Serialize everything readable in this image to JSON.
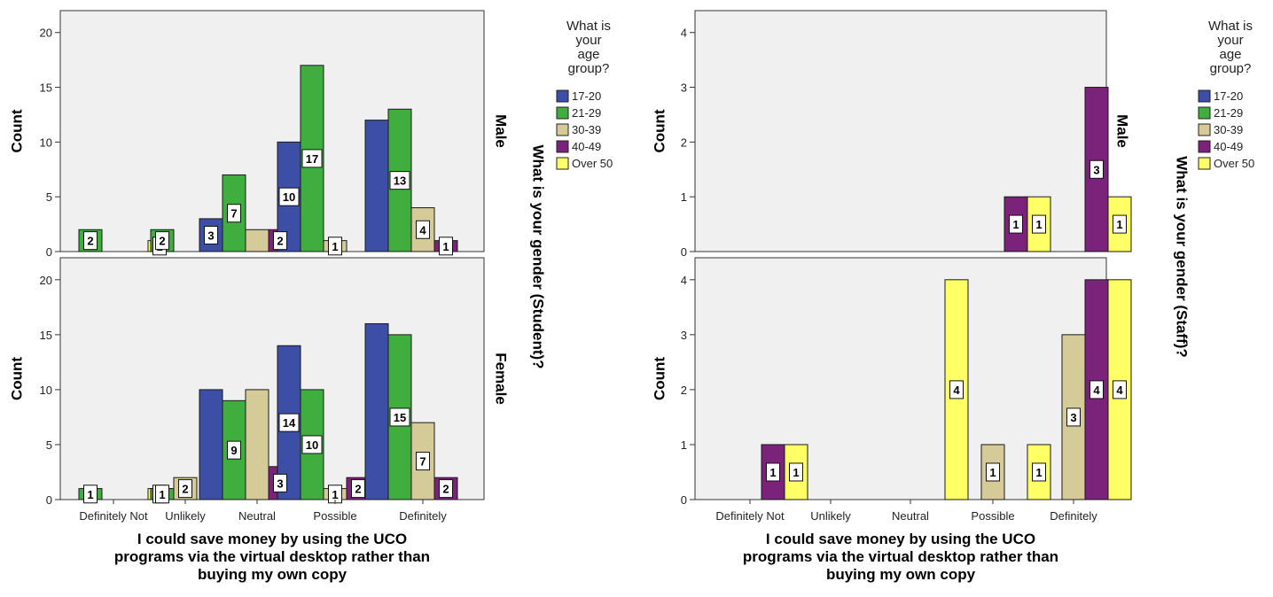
{
  "legend": {
    "title_lines": [
      "What is",
      "your",
      "age",
      "group?"
    ],
    "items": [
      {
        "label": "17-20",
        "color": "#3c4ea6"
      },
      {
        "label": "21-29",
        "color": "#3fae3f"
      },
      {
        "label": "30-39",
        "color": "#d4cb98"
      },
      {
        "label": "40-49",
        "color": "#7b237b"
      },
      {
        "label": "Over 50",
        "color": "#ffff66"
      }
    ]
  },
  "colors": {
    "plot_bg": "#f0f0f0",
    "axis": "#333333"
  },
  "chart_data": [
    {
      "type": "bar",
      "facet_label": "What is your gender (Student)?",
      "xlabel_lines": [
        "I could save money by using the UCO",
        "programs via the virtual desktop rather than",
        "buying my own copy"
      ],
      "ylabel": "Count",
      "categories": [
        "Definitely Not",
        "Unlikely",
        "Neutral",
        "Possible",
        "Definitely"
      ],
      "ylim": [
        0,
        22
      ],
      "yticks": [
        0,
        5,
        10,
        15,
        20
      ],
      "panels": [
        {
          "label": "Male",
          "series": [
            {
              "name": "17-20",
              "values": [
                0,
                0,
                3,
                10,
                12
              ]
            },
            {
              "name": "21-29",
              "values": [
                2,
                2,
                7,
                17,
                13
              ]
            },
            {
              "name": "30-39",
              "values": [
                0,
                0,
                2,
                1,
                4
              ]
            },
            {
              "name": "40-49",
              "values": [
                0,
                0,
                2,
                0,
                1
              ]
            },
            {
              "name": "Over 50",
              "values": [
                1,
                0,
                0,
                0,
                0
              ]
            }
          ],
          "data_labels": [
            {
              "cat": 0,
              "series": 1,
              "text": "2"
            },
            {
              "cat": 0,
              "series": 4,
              "text": "1"
            },
            {
              "cat": 1,
              "series": 1,
              "text": "2"
            },
            {
              "cat": 2,
              "series": 0,
              "text": "3"
            },
            {
              "cat": 2,
              "series": 1,
              "text": "7"
            },
            {
              "cat": 2,
              "series": 3,
              "text": "2"
            },
            {
              "cat": 3,
              "series": 0,
              "text": "10"
            },
            {
              "cat": 3,
              "series": 1,
              "text": "17"
            },
            {
              "cat": 3,
              "series": 2,
              "text": "1"
            },
            {
              "cat": 4,
              "series": 1,
              "text": "13"
            },
            {
              "cat": 4,
              "series": 2,
              "text": "4"
            },
            {
              "cat": 4,
              "series": 3,
              "text": "1"
            }
          ]
        },
        {
          "label": "Female",
          "series": [
            {
              "name": "17-20",
              "values": [
                0,
                0,
                10,
                14,
                16
              ]
            },
            {
              "name": "21-29",
              "values": [
                1,
                1,
                9,
                10,
                15
              ]
            },
            {
              "name": "30-39",
              "values": [
                0,
                2,
                10,
                1,
                7
              ]
            },
            {
              "name": "40-49",
              "values": [
                0,
                0,
                3,
                2,
                2
              ]
            },
            {
              "name": "Over 50",
              "values": [
                1,
                0,
                0,
                0,
                0
              ]
            }
          ],
          "data_labels": [
            {
              "cat": 0,
              "series": 1,
              "text": "1"
            },
            {
              "cat": 0,
              "series": 4,
              "text": "1"
            },
            {
              "cat": 1,
              "series": 1,
              "text": "1"
            },
            {
              "cat": 1,
              "series": 2,
              "text": "2"
            },
            {
              "cat": 2,
              "series": 1,
              "text": "9"
            },
            {
              "cat": 2,
              "series": 3,
              "text": "3"
            },
            {
              "cat": 3,
              "series": 0,
              "text": "14"
            },
            {
              "cat": 3,
              "series": 1,
              "text": "10"
            },
            {
              "cat": 3,
              "series": 2,
              "text": "1"
            },
            {
              "cat": 3,
              "series": 3,
              "text": "2"
            },
            {
              "cat": 4,
              "series": 1,
              "text": "15"
            },
            {
              "cat": 4,
              "series": 2,
              "text": "7"
            },
            {
              "cat": 4,
              "series": 3,
              "text": "2"
            }
          ]
        }
      ]
    },
    {
      "type": "bar",
      "facet_label": "What is your gender (Staff)?",
      "xlabel_lines": [
        "I could save money by using the UCO",
        "programs via the virtual desktop rather than",
        "buying my own copy"
      ],
      "ylabel": "Count",
      "categories": [
        "Definitely Not",
        "Unlikely",
        "Neutral",
        "Possible",
        "Definitely"
      ],
      "ylim": [
        0,
        4.4
      ],
      "yticks": [
        0,
        1,
        2,
        3,
        4
      ],
      "panels": [
        {
          "label": "Male",
          "series": [
            {
              "name": "17-20",
              "values": [
                0,
                0,
                0,
                0,
                0
              ]
            },
            {
              "name": "21-29",
              "values": [
                0,
                0,
                0,
                0,
                0
              ]
            },
            {
              "name": "30-39",
              "values": [
                0,
                0,
                0,
                0,
                0
              ]
            },
            {
              "name": "40-49",
              "values": [
                0,
                0,
                0,
                1,
                3
              ]
            },
            {
              "name": "Over 50",
              "values": [
                0,
                0,
                0,
                1,
                1
              ]
            }
          ],
          "data_labels": [
            {
              "cat": 3,
              "series": 3,
              "text": "1"
            },
            {
              "cat": 3,
              "series": 4,
              "text": "1"
            },
            {
              "cat": 4,
              "series": 3,
              "text": "3"
            },
            {
              "cat": 4,
              "series": 4,
              "text": "1"
            }
          ]
        },
        {
          "label": "Female",
          "series": [
            {
              "name": "17-20",
              "values": [
                0,
                0,
                0,
                0,
                0
              ]
            },
            {
              "name": "21-29",
              "values": [
                0,
                0,
                0,
                0,
                0
              ]
            },
            {
              "name": "30-39",
              "values": [
                0,
                0,
                0,
                1,
                3
              ]
            },
            {
              "name": "40-49",
              "values": [
                1,
                0,
                0,
                0,
                4
              ]
            },
            {
              "name": "Over 50",
              "values": [
                1,
                0,
                4,
                1,
                4
              ]
            }
          ],
          "data_labels": [
            {
              "cat": 0,
              "series": 3,
              "text": "1"
            },
            {
              "cat": 0,
              "series": 4,
              "text": "1"
            },
            {
              "cat": 2,
              "series": 4,
              "text": "4"
            },
            {
              "cat": 3,
              "series": 2,
              "text": "1"
            },
            {
              "cat": 3,
              "series": 4,
              "text": "1"
            },
            {
              "cat": 4,
              "series": 2,
              "text": "3"
            },
            {
              "cat": 4,
              "series": 3,
              "text": "4"
            },
            {
              "cat": 4,
              "series": 4,
              "text": "4"
            }
          ]
        }
      ]
    }
  ]
}
